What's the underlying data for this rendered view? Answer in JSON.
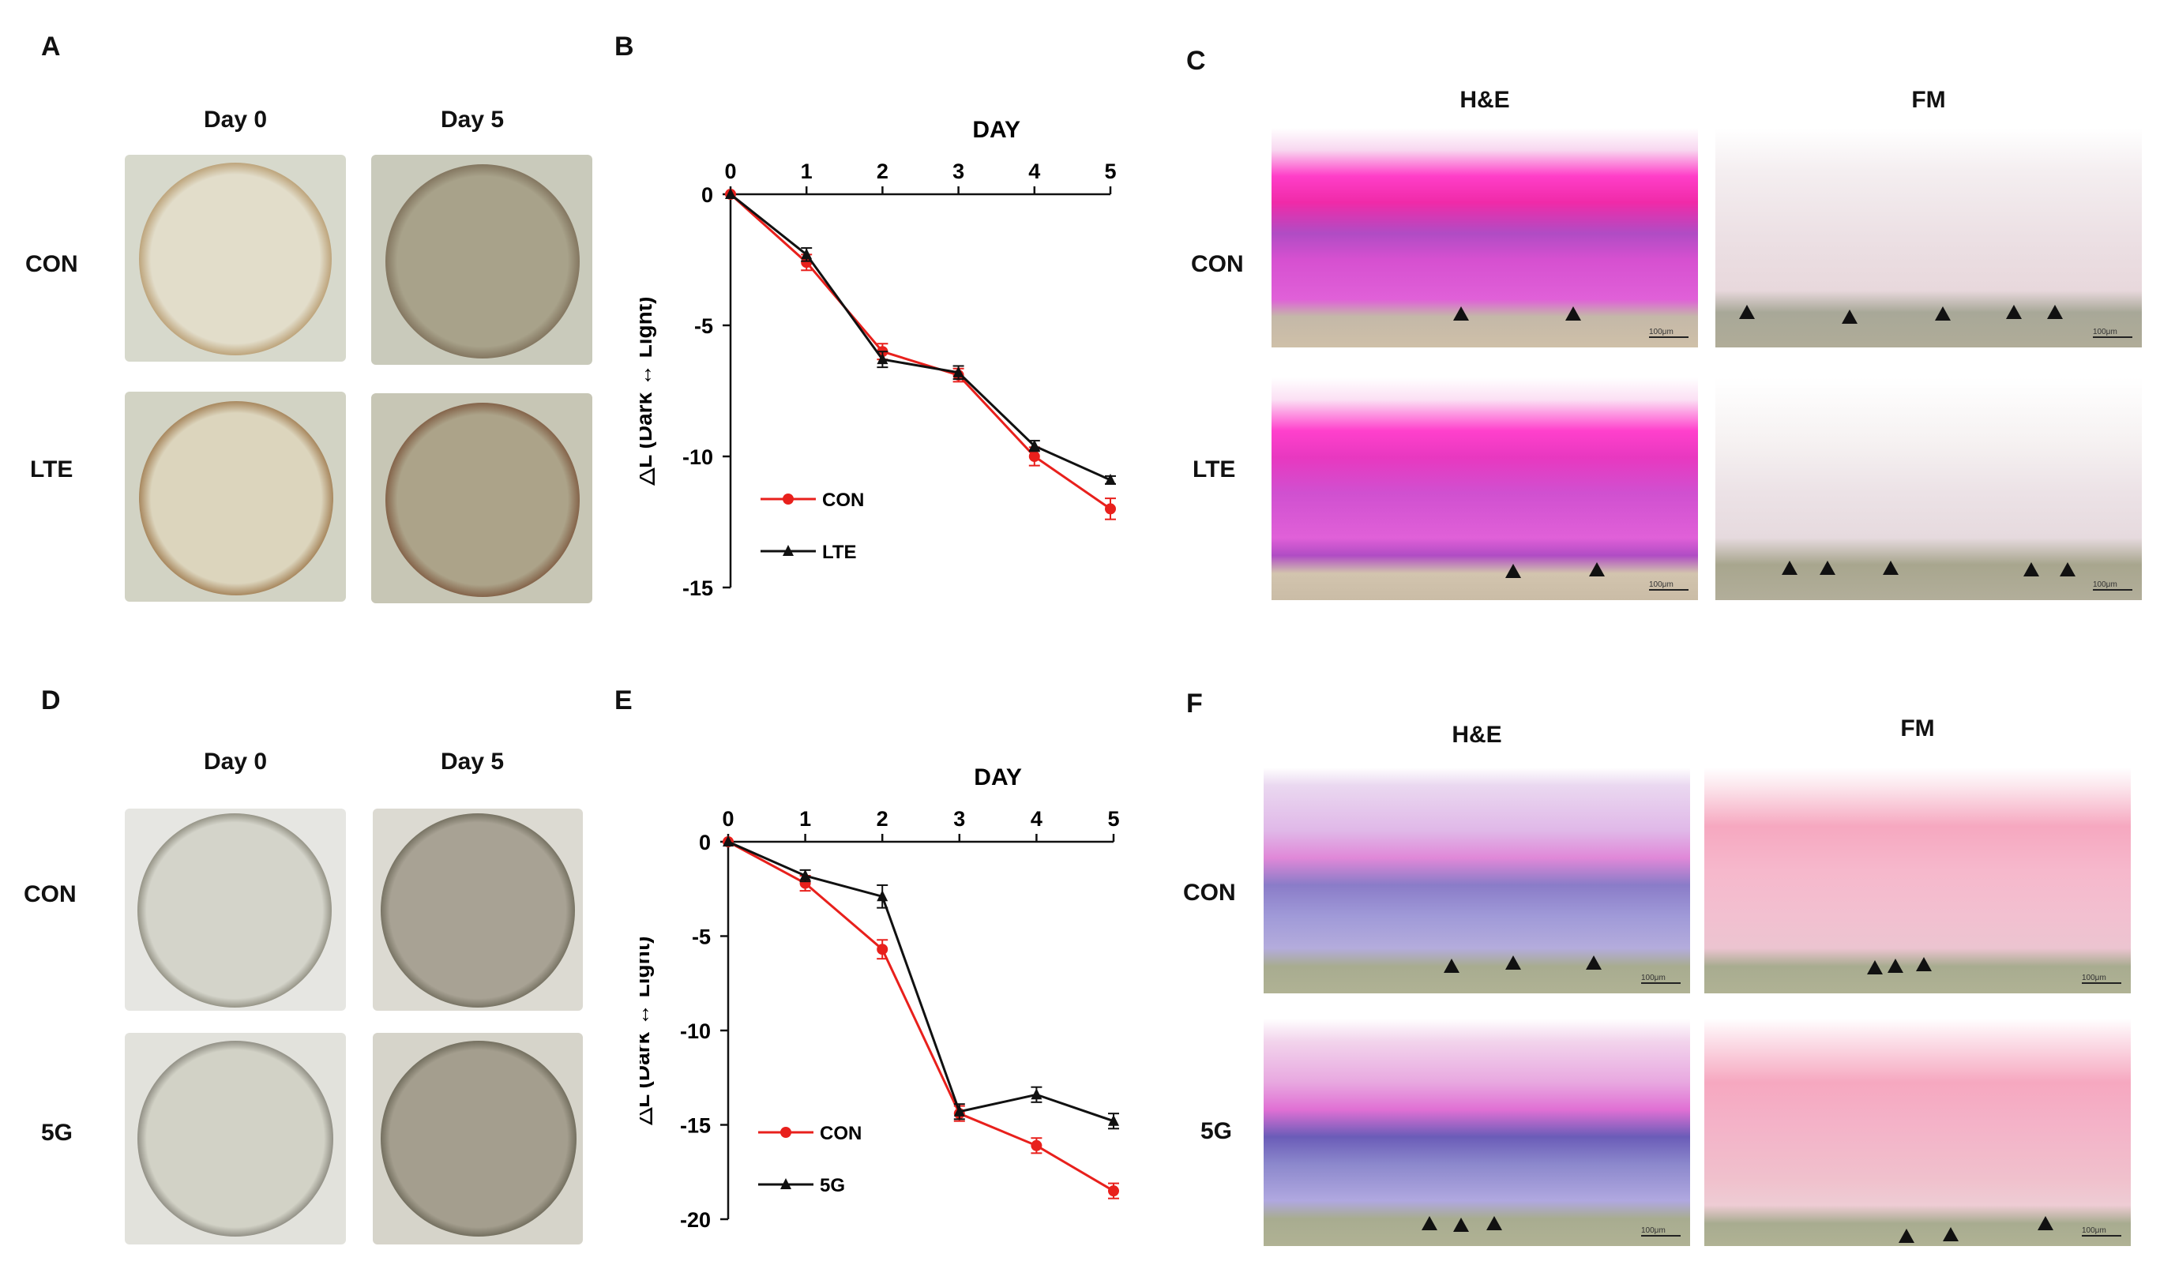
{
  "panels": {
    "A": {
      "letter": "A",
      "col_labels": [
        "Day 0",
        "Day 5"
      ],
      "row_labels": [
        "CON",
        "LTE"
      ]
    },
    "B": {
      "letter": "B"
    },
    "C": {
      "letter": "C",
      "col_labels": [
        "H&E",
        "FM"
      ],
      "row_labels": [
        "CON",
        "LTE"
      ],
      "scale_bar": "100μm"
    },
    "D": {
      "letter": "D",
      "col_labels": [
        "Day 0",
        "Day 5"
      ],
      "row_labels": [
        "CON",
        "5G"
      ]
    },
    "E": {
      "letter": "E"
    },
    "F": {
      "letter": "F",
      "col_labels": [
        "H&E",
        "FM"
      ],
      "row_labels": [
        "CON",
        "5G"
      ],
      "scale_bar": "100μm"
    }
  },
  "colors": {
    "con": "#e8201c",
    "treat": "#111111",
    "he_pink": "#e85cc8",
    "he_purple": "#8a6cc8",
    "fm_pink": "#f2a8c0"
  },
  "chart_data": [
    {
      "type": "line",
      "panel": "B",
      "title": "",
      "xlabel": "DAY",
      "ylabel": "△L (Dark ↔ Light)",
      "x": [
        0,
        1,
        2,
        3,
        4,
        5
      ],
      "xlim": [
        0,
        5
      ],
      "ylim": [
        -15,
        0
      ],
      "yticks": [
        0,
        -5,
        -10,
        -15
      ],
      "legend_position": "bottom-left",
      "series": [
        {
          "name": "CON",
          "color": "#e8201c",
          "marker": "circle",
          "values": [
            0,
            -2.6,
            -6.0,
            -6.9,
            -10.0,
            -12.0
          ],
          "errors": [
            0,
            0.3,
            0.3,
            0.25,
            0.35,
            0.4
          ]
        },
        {
          "name": "LTE",
          "color": "#111111",
          "marker": "triangle",
          "values": [
            0,
            -2.3,
            -6.3,
            -6.8,
            -9.6,
            -10.9
          ],
          "errors": [
            0,
            0.25,
            0.3,
            0.25,
            0.2,
            0.15
          ]
        }
      ]
    },
    {
      "type": "line",
      "panel": "E",
      "title": "",
      "xlabel": "DAY",
      "ylabel": "△L (Dark ↔ Light)",
      "x": [
        0,
        1,
        2,
        3,
        4,
        5
      ],
      "xlim": [
        0,
        5
      ],
      "ylim": [
        -20,
        0
      ],
      "yticks": [
        0,
        -5,
        -10,
        -15,
        -20
      ],
      "legend_position": "bottom-left",
      "series": [
        {
          "name": "CON",
          "color": "#e8201c",
          "marker": "circle",
          "values": [
            0,
            -2.2,
            -5.7,
            -14.4,
            -16.1,
            -18.5
          ],
          "errors": [
            0,
            0.4,
            0.5,
            0.4,
            0.4,
            0.4
          ]
        },
        {
          "name": "5G",
          "color": "#111111",
          "marker": "triangle",
          "values": [
            0,
            -1.8,
            -2.9,
            -14.3,
            -13.4,
            -14.8
          ],
          "errors": [
            0,
            0.3,
            0.6,
            0.4,
            0.4,
            0.4
          ]
        }
      ]
    }
  ]
}
